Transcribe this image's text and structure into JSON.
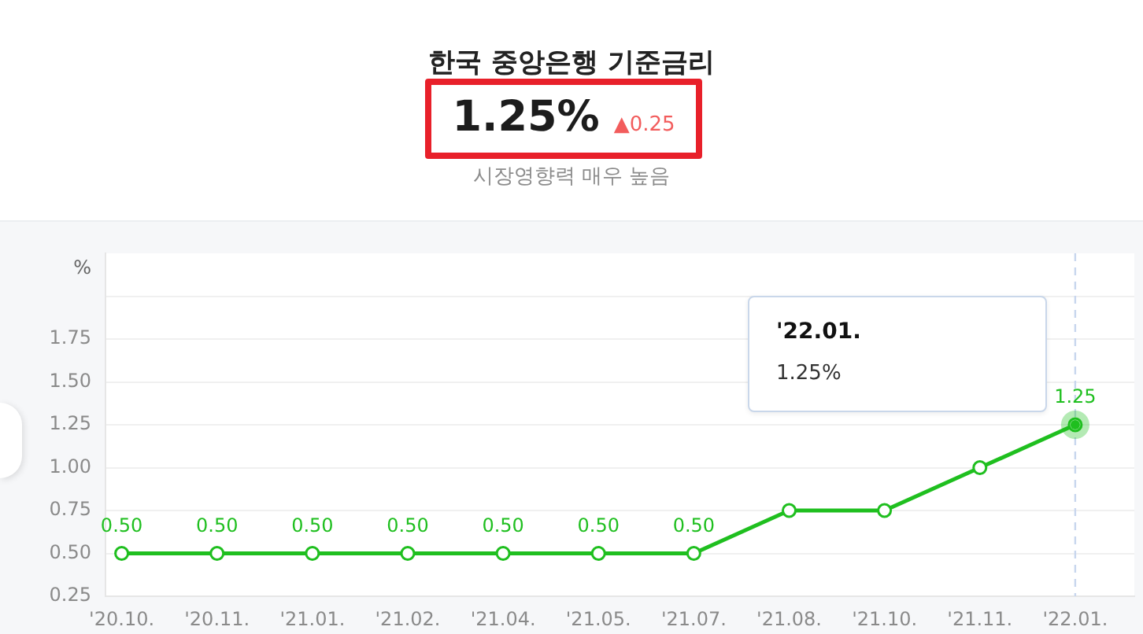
{
  "chart_data": {
    "type": "line",
    "title": "한국 중앙은행 기준금리",
    "subtitle": "시장영향력 매우 높음",
    "ylabel": "%",
    "annotations": [
      "1.25%",
      "▲0.25",
      "'22.01.",
      "1.25%"
    ],
    "categories": [
      "'20.10.",
      "'20.11.",
      "'21.01.",
      "'21.02.",
      "'21.04.",
      "'21.05.",
      "'21.07.",
      "'21.08.",
      "'21.10.",
      "'21.11.",
      "'22.01."
    ],
    "values": [
      0.5,
      0.5,
      0.5,
      0.5,
      0.5,
      0.5,
      0.5,
      0.75,
      0.75,
      1.0,
      1.25
    ],
    "value_labels": [
      "0.50",
      "0.50",
      "0.50",
      "0.50",
      "0.50",
      "0.50",
      "0.50",
      null,
      null,
      null,
      "1.25"
    ],
    "color": "#1fbf1f",
    "ylim": [
      0.25,
      2.25
    ],
    "yticks": [
      0.25,
      {
        "value": 0.5,
        "label": "0.50"
      },
      0.75,
      {
        "value": 1,
        "label": "1.00"
      },
      1.25,
      {
        "value": 1.5,
        "label": "1.50"
      },
      1.75,
      {
        "value": 2,
        "label": null
      }
    ],
    "grid": "y",
    "marker": "circle",
    "line_style": "solid",
    "ref_lines": [
      {
        "axis": "x",
        "value": "'22.01.",
        "color": "#c8d6ee",
        "line_style": "dashed"
      }
    ]
  }
}
